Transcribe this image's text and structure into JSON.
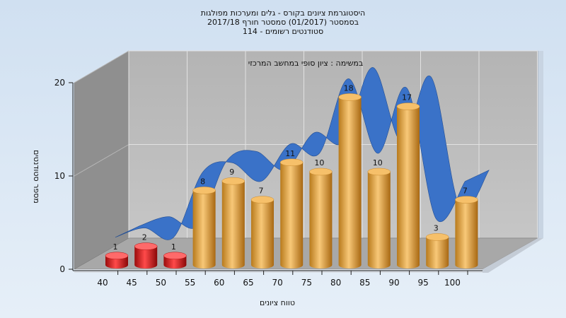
{
  "chart_data": {
    "type": "bar",
    "title_lines": [
      "היסטוגרמת ציונים בקורס - גלים ומערכות מפולגות",
      "בסמסטר  (01/2017)  סמסטר חורף  2017/18",
      "סטודנטים רשומים - 114"
    ],
    "subtitle": "במשימה : ציון סופי במחשב המרכזי",
    "xlabel": "טווח ציונים",
    "ylabel": "מספר סטודנטים",
    "categories": [
      "40",
      "45",
      "50",
      "55",
      "60",
      "65",
      "70",
      "75",
      "80",
      "85",
      "90",
      "95",
      "100"
    ],
    "values": [
      1,
      2,
      1,
      8,
      9,
      7,
      11,
      10,
      18,
      10,
      17,
      3,
      7
    ],
    "failing_categories": [
      "40",
      "45",
      "50"
    ],
    "ylim": [
      0,
      20
    ],
    "yticks": [
      0,
      10,
      20
    ],
    "grid": true,
    "colors": {
      "pass_bar": "#e8a640",
      "fail_bar": "#d41c1c",
      "trend_ribbon": "#3a72c8",
      "plot_back": "#bcbcbc",
      "plot_side": "#8f8f8f",
      "plot_floor": "#a8a8a8",
      "background": "#d6e4f2"
    }
  }
}
